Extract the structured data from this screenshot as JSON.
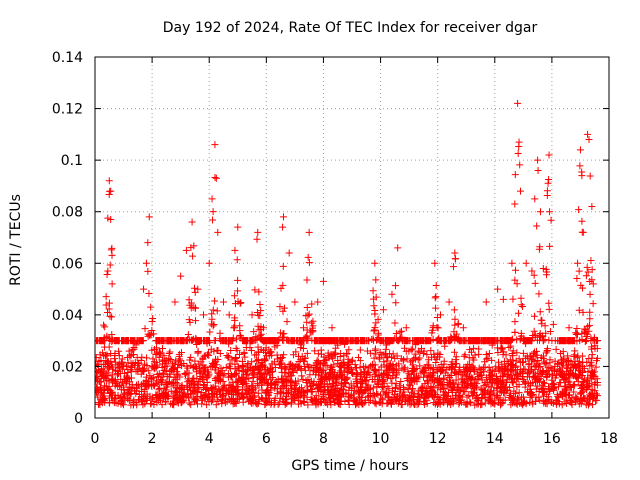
{
  "chart_data": {
    "type": "scatter",
    "title": "Day 192 of 2024, Rate Of TEC Index for receiver dgar",
    "xlabel": "GPS time / hours",
    "ylabel": "ROTI / TECUs",
    "xlim": [
      0,
      18
    ],
    "ylim": [
      0,
      0.14
    ],
    "xticks": [
      0,
      2,
      4,
      6,
      8,
      10,
      12,
      14,
      16,
      18
    ],
    "yticks": [
      0,
      0.02,
      0.04,
      0.06,
      0.08,
      0.1,
      0.12,
      0.14
    ],
    "xtick_labels": [
      "0",
      "2",
      "4",
      "6",
      "8",
      "10",
      "12",
      "14",
      "16",
      "18"
    ],
    "ytick_labels": [
      "0",
      "0.02",
      "0.04",
      "0.06",
      "0.08",
      "0.1",
      "0.12",
      "0.14"
    ],
    "grid": true,
    "marker": "+",
    "color": "#ff0000",
    "data_extent_hours": [
      0,
      17.6
    ],
    "background_band": [
      0.005,
      0.03
    ],
    "peaks": [
      {
        "x": 0.5,
        "y": 0.092
      },
      {
        "x": 1.9,
        "y": 0.078
      },
      {
        "x": 3.4,
        "y": 0.076
      },
      {
        "x": 4.2,
        "y": 0.106
      },
      {
        "x": 5.0,
        "y": 0.074
      },
      {
        "x": 5.7,
        "y": 0.072
      },
      {
        "x": 6.6,
        "y": 0.078
      },
      {
        "x": 7.5,
        "y": 0.072
      },
      {
        "x": 9.8,
        "y": 0.06
      },
      {
        "x": 10.6,
        "y": 0.066
      },
      {
        "x": 11.9,
        "y": 0.06
      },
      {
        "x": 12.6,
        "y": 0.064
      },
      {
        "x": 14.8,
        "y": 0.122
      },
      {
        "x": 15.5,
        "y": 0.1
      },
      {
        "x": 15.9,
        "y": 0.102
      },
      {
        "x": 17.0,
        "y": 0.104
      },
      {
        "x": 17.3,
        "y": 0.11
      }
    ],
    "series": [
      {
        "name": "ROTI",
        "points": [
          [
            0.05,
            0.012
          ],
          [
            0.2,
            0.018
          ],
          [
            0.3,
            0.036
          ],
          [
            0.45,
            0.057
          ],
          [
            0.5,
            0.092
          ],
          [
            0.55,
            0.088
          ],
          [
            0.55,
            0.077
          ],
          [
            0.6,
            0.052
          ],
          [
            0.7,
            0.025
          ],
          [
            0.9,
            0.015
          ],
          [
            1.1,
            0.02
          ],
          [
            1.3,
            0.012
          ],
          [
            1.5,
            0.018
          ],
          [
            1.7,
            0.05
          ],
          [
            1.8,
            0.06
          ],
          [
            1.85,
            0.068
          ],
          [
            1.9,
            0.078
          ],
          [
            1.95,
            0.043
          ],
          [
            2.1,
            0.02
          ],
          [
            2.3,
            0.015
          ],
          [
            2.6,
            0.025
          ],
          [
            2.8,
            0.045
          ],
          [
            3.0,
            0.055
          ],
          [
            3.2,
            0.065
          ],
          [
            3.4,
            0.076
          ],
          [
            3.6,
            0.05
          ],
          [
            3.8,
            0.04
          ],
          [
            4.0,
            0.06
          ],
          [
            4.1,
            0.085
          ],
          [
            4.2,
            0.106
          ],
          [
            4.25,
            0.093
          ],
          [
            4.3,
            0.072
          ],
          [
            4.5,
            0.045
          ],
          [
            4.7,
            0.04
          ],
          [
            4.9,
            0.065
          ],
          [
            5.0,
            0.074
          ],
          [
            5.2,
            0.03
          ],
          [
            5.5,
            0.04
          ],
          [
            5.7,
            0.072
          ],
          [
            5.9,
            0.035
          ],
          [
            6.1,
            0.025
          ],
          [
            6.3,
            0.03
          ],
          [
            6.6,
            0.078
          ],
          [
            6.8,
            0.064
          ],
          [
            7.0,
            0.045
          ],
          [
            7.3,
            0.035
          ],
          [
            7.5,
            0.072
          ],
          [
            7.8,
            0.045
          ],
          [
            8.0,
            0.053
          ],
          [
            8.3,
            0.035
          ],
          [
            8.6,
            0.025
          ],
          [
            9.0,
            0.022
          ],
          [
            9.4,
            0.02
          ],
          [
            9.8,
            0.06
          ],
          [
            10.1,
            0.042
          ],
          [
            10.4,
            0.048
          ],
          [
            10.6,
            0.066
          ],
          [
            10.9,
            0.035
          ],
          [
            11.2,
            0.03
          ],
          [
            11.5,
            0.025
          ],
          [
            11.9,
            0.06
          ],
          [
            12.1,
            0.04
          ],
          [
            12.4,
            0.045
          ],
          [
            12.6,
            0.064
          ],
          [
            12.9,
            0.035
          ],
          [
            13.3,
            0.03
          ],
          [
            13.7,
            0.045
          ],
          [
            14.1,
            0.05
          ],
          [
            14.3,
            0.046
          ],
          [
            14.6,
            0.06
          ],
          [
            14.7,
            0.083
          ],
          [
            14.8,
            0.122
          ],
          [
            14.85,
            0.107
          ],
          [
            14.9,
            0.088
          ],
          [
            15.1,
            0.06
          ],
          [
            15.3,
            0.057
          ],
          [
            15.4,
            0.085
          ],
          [
            15.5,
            0.1
          ],
          [
            15.6,
            0.08
          ],
          [
            15.7,
            0.058
          ],
          [
            15.9,
            0.102
          ],
          [
            16.0,
            0.03
          ],
          [
            16.3,
            0.025
          ],
          [
            16.6,
            0.035
          ],
          [
            16.9,
            0.06
          ],
          [
            17.0,
            0.104
          ],
          [
            17.05,
            0.094
          ],
          [
            17.1,
            0.072
          ],
          [
            17.25,
            0.11
          ],
          [
            17.3,
            0.108
          ],
          [
            17.4,
            0.082
          ],
          [
            17.45,
            0.052
          ],
          [
            17.5,
            0.028
          ]
        ]
      }
    ]
  }
}
